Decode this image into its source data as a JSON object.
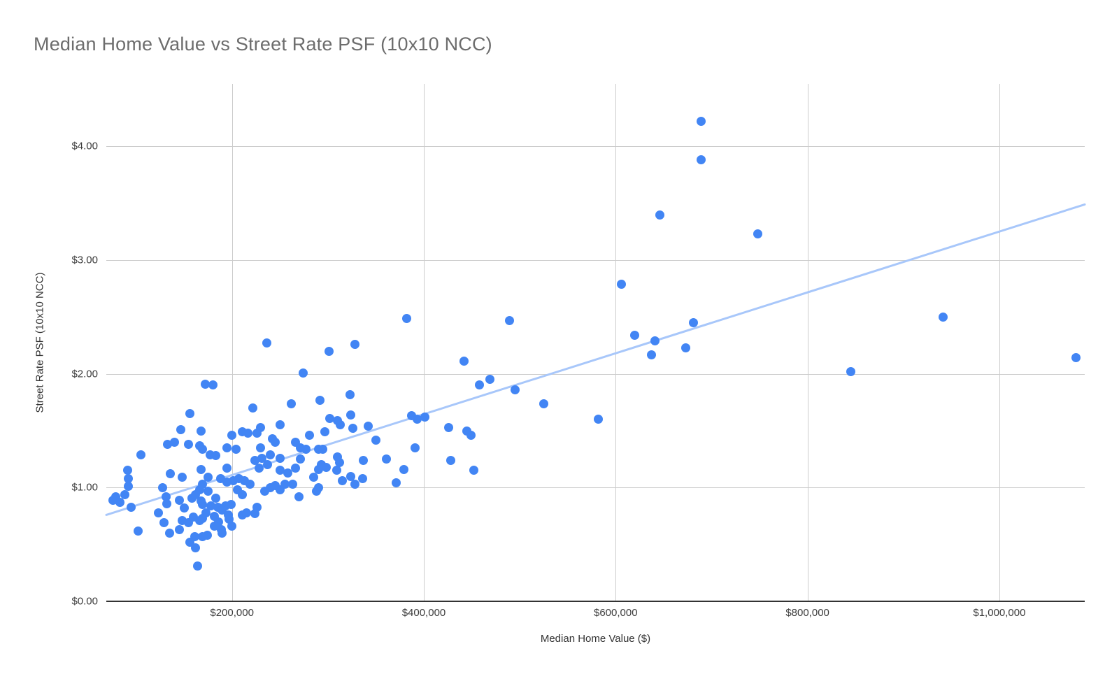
{
  "chart": {
    "title": "Median Home Value vs Street Rate PSF (10x10 NCC)",
    "colors": {
      "point": "#4285f4",
      "trendline": "#a8c7fa",
      "gridline": "#cccccc",
      "axis_line": "#333333",
      "title_text": "#6d6d6d",
      "tick_text": "#3c3c3c"
    }
  },
  "chart_data": {
    "type": "scatter",
    "title": "Median Home Value vs Street Rate PSF (10x10 NCC)",
    "xlabel": "Median Home Value ($)",
    "ylabel": "Street Rate PSF (10x10 NCC)",
    "xlim": [
      69000,
      1089000
    ],
    "ylim": [
      0,
      4.55
    ],
    "grid": true,
    "legend": "none",
    "x_ticks": [
      {
        "value": 200000,
        "label": "$200,000"
      },
      {
        "value": 400000,
        "label": "$400,000"
      },
      {
        "value": 600000,
        "label": "$600,000"
      },
      {
        "value": 800000,
        "label": "$800,000"
      },
      {
        "value": 1000000,
        "label": "$1,000,000"
      }
    ],
    "y_ticks": [
      {
        "value": 0,
        "label": "$0.00"
      },
      {
        "value": 1,
        "label": "$1.00"
      },
      {
        "value": 2,
        "label": "$2.00"
      },
      {
        "value": 3,
        "label": "$3.00"
      },
      {
        "value": 4,
        "label": "$4.00"
      }
    ],
    "trendline": {
      "x": [
        69000,
        1089000
      ],
      "y": [
        0.76,
        3.49
      ]
    },
    "points": [
      [
        76000,
        0.89
      ],
      [
        79000,
        0.92
      ],
      [
        83000,
        0.87
      ],
      [
        88000,
        0.94
      ],
      [
        91000,
        1.15
      ],
      [
        92000,
        1.08
      ],
      [
        92000,
        1.01
      ],
      [
        95000,
        0.83
      ],
      [
        102000,
        0.62
      ],
      [
        105000,
        1.29
      ],
      [
        123000,
        0.78
      ],
      [
        128000,
        1.0
      ],
      [
        131000,
        0.92
      ],
      [
        132000,
        0.86
      ],
      [
        129000,
        0.69
      ],
      [
        135000,
        0.6
      ],
      [
        133000,
        1.38
      ],
      [
        140000,
        1.4
      ],
      [
        147000,
        1.51
      ],
      [
        156000,
        1.65
      ],
      [
        155000,
        1.38
      ],
      [
        166000,
        1.37
      ],
      [
        136000,
        1.12
      ],
      [
        168000,
        1.16
      ],
      [
        148000,
        1.09
      ],
      [
        145000,
        0.89
      ],
      [
        150000,
        0.82
      ],
      [
        148000,
        0.71
      ],
      [
        145000,
        0.63
      ],
      [
        155000,
        0.69
      ],
      [
        160000,
        0.74
      ],
      [
        166000,
        0.71
      ],
      [
        173000,
        0.78
      ],
      [
        182000,
        0.75
      ],
      [
        186000,
        0.7
      ],
      [
        189000,
        0.63
      ],
      [
        197000,
        0.72
      ],
      [
        200000,
        0.66
      ],
      [
        211000,
        0.76
      ],
      [
        215000,
        0.78
      ],
      [
        224000,
        0.77
      ],
      [
        174000,
        0.58
      ],
      [
        161000,
        0.57
      ],
      [
        169000,
        0.57
      ],
      [
        156000,
        0.52
      ],
      [
        162000,
        0.47
      ],
      [
        164000,
        0.31
      ],
      [
        158000,
        0.91
      ],
      [
        162000,
        0.94
      ],
      [
        166000,
        0.98
      ],
      [
        168000,
        0.88
      ],
      [
        169000,
        1.03
      ],
      [
        175000,
        1.09
      ],
      [
        188000,
        1.08
      ],
      [
        195000,
        1.05
      ],
      [
        201000,
        1.06
      ],
      [
        207000,
        1.08
      ],
      [
        213000,
        1.06
      ],
      [
        219000,
        1.03
      ],
      [
        206000,
        0.98
      ],
      [
        211000,
        0.94
      ],
      [
        183000,
        0.91
      ],
      [
        175000,
        0.97
      ],
      [
        193000,
        0.84
      ],
      [
        199000,
        0.85
      ],
      [
        185000,
        0.83
      ],
      [
        178000,
        0.84
      ],
      [
        169000,
        0.85
      ],
      [
        190000,
        0.8
      ],
      [
        196000,
        0.76
      ],
      [
        226000,
        0.83
      ],
      [
        182000,
        0.66
      ],
      [
        169000,
        0.73
      ],
      [
        190000,
        0.6
      ],
      [
        172000,
        1.91
      ],
      [
        180000,
        1.9
      ],
      [
        222000,
        1.7
      ],
      [
        262000,
        1.74
      ],
      [
        230000,
        1.53
      ],
      [
        250000,
        1.55
      ],
      [
        211000,
        1.49
      ],
      [
        217000,
        1.48
      ],
      [
        226000,
        1.48
      ],
      [
        200000,
        1.46
      ],
      [
        168000,
        1.5
      ],
      [
        169000,
        1.34
      ],
      [
        195000,
        1.35
      ],
      [
        204000,
        1.34
      ],
      [
        177000,
        1.29
      ],
      [
        183000,
        1.28
      ],
      [
        230000,
        1.35
      ],
      [
        242000,
        1.43
      ],
      [
        245000,
        1.4
      ],
      [
        266000,
        1.4
      ],
      [
        271000,
        1.35
      ],
      [
        231000,
        1.26
      ],
      [
        240000,
        1.29
      ],
      [
        250000,
        1.26
      ],
      [
        224000,
        1.24
      ],
      [
        271000,
        1.25
      ],
      [
        195000,
        1.17
      ],
      [
        228000,
        1.17
      ],
      [
        237000,
        1.2
      ],
      [
        250000,
        1.15
      ],
      [
        258000,
        1.13
      ],
      [
        266000,
        1.17
      ],
      [
        234000,
        0.97
      ],
      [
        240000,
        1.0
      ],
      [
        245000,
        1.02
      ],
      [
        250000,
        0.98
      ],
      [
        255000,
        1.03
      ],
      [
        263000,
        1.03
      ],
      [
        270000,
        0.92
      ],
      [
        292000,
        1.77
      ],
      [
        323000,
        1.82
      ],
      [
        302000,
        1.61
      ],
      [
        310000,
        1.59
      ],
      [
        313000,
        1.55
      ],
      [
        324000,
        1.64
      ],
      [
        326000,
        1.52
      ],
      [
        342000,
        1.54
      ],
      [
        281000,
        1.46
      ],
      [
        297000,
        1.49
      ],
      [
        277000,
        1.34
      ],
      [
        290000,
        1.34
      ],
      [
        295000,
        1.34
      ],
      [
        350000,
        1.42
      ],
      [
        310000,
        1.27
      ],
      [
        312000,
        1.22
      ],
      [
        337000,
        1.24
      ],
      [
        361000,
        1.25
      ],
      [
        293000,
        1.2
      ],
      [
        298000,
        1.18
      ],
      [
        290000,
        1.16
      ],
      [
        309000,
        1.15
      ],
      [
        285000,
        1.09
      ],
      [
        290000,
        1.0
      ],
      [
        288000,
        0.97
      ],
      [
        315000,
        1.06
      ],
      [
        324000,
        1.1
      ],
      [
        328000,
        1.03
      ],
      [
        336000,
        1.08
      ],
      [
        236000,
        2.27
      ],
      [
        301000,
        2.2
      ],
      [
        328000,
        2.26
      ],
      [
        274000,
        2.01
      ],
      [
        382000,
        2.49
      ],
      [
        489000,
        2.47
      ],
      [
        442000,
        2.11
      ],
      [
        469000,
        1.95
      ],
      [
        458000,
        1.9
      ],
      [
        495000,
        1.86
      ],
      [
        525000,
        1.74
      ],
      [
        387000,
        1.63
      ],
      [
        393000,
        1.6
      ],
      [
        401000,
        1.62
      ],
      [
        426000,
        1.53
      ],
      [
        445000,
        1.5
      ],
      [
        449000,
        1.46
      ],
      [
        391000,
        1.35
      ],
      [
        379000,
        1.16
      ],
      [
        428000,
        1.24
      ],
      [
        371000,
        1.04
      ],
      [
        452000,
        1.15
      ],
      [
        689000,
        4.22
      ],
      [
        689000,
        3.88
      ],
      [
        646000,
        3.4
      ],
      [
        748000,
        3.23
      ],
      [
        606000,
        2.79
      ],
      [
        681000,
        2.45
      ],
      [
        620000,
        2.34
      ],
      [
        641000,
        2.29
      ],
      [
        673000,
        2.23
      ],
      [
        637000,
        2.17
      ],
      [
        582000,
        1.6
      ],
      [
        941000,
        2.5
      ],
      [
        845000,
        2.02
      ],
      [
        1080000,
        2.14
      ]
    ]
  }
}
